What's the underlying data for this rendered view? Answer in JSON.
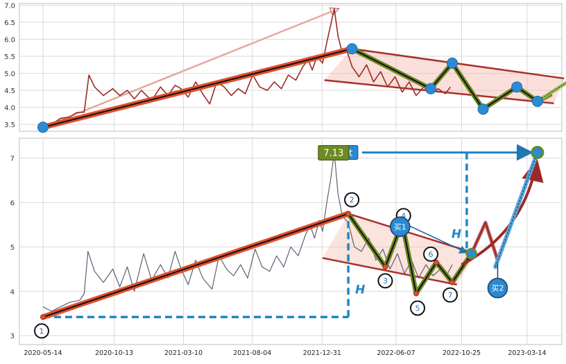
{
  "chart_data": [
    {
      "type": "line",
      "panel": "top",
      "ylim": [
        3.3,
        7.05
      ],
      "yticks": [
        "3.5",
        "4.0",
        "4.5",
        "5.0",
        "5.5",
        "6.0",
        "6.5",
        "7.0"
      ],
      "grid": true,
      "price_series": {
        "color": "#9b2a24",
        "points": [
          [
            "2020-05-14",
            3.42
          ],
          [
            "2020-06-01",
            3.5
          ],
          [
            "2020-06-20",
            3.68
          ],
          [
            "2020-07-10",
            3.72
          ],
          [
            "2020-07-25",
            3.85
          ],
          [
            "2020-08-10",
            3.86
          ],
          [
            "2020-08-20",
            4.95
          ],
          [
            "2020-09-01",
            4.6
          ],
          [
            "2020-09-20",
            4.35
          ],
          [
            "2020-10-10",
            4.55
          ],
          [
            "2020-10-25",
            4.35
          ],
          [
            "2020-11-10",
            4.5
          ],
          [
            "2020-11-25",
            4.25
          ],
          [
            "2020-12-10",
            4.5
          ],
          [
            "2021-01-01",
            4.2
          ],
          [
            "2021-01-20",
            4.6
          ],
          [
            "2021-02-05",
            4.35
          ],
          [
            "2021-02-20",
            4.65
          ],
          [
            "2021-03-05",
            4.55
          ],
          [
            "2021-03-20",
            4.3
          ],
          [
            "2021-04-05",
            4.75
          ],
          [
            "2021-04-20",
            4.4
          ],
          [
            "2021-05-05",
            4.1
          ],
          [
            "2021-05-20",
            4.75
          ],
          [
            "2021-06-05",
            4.6
          ],
          [
            "2021-06-20",
            4.35
          ],
          [
            "2021-07-05",
            4.55
          ],
          [
            "2021-07-20",
            4.4
          ],
          [
            "2021-08-05",
            4.95
          ],
          [
            "2021-08-20",
            4.6
          ],
          [
            "2021-09-05",
            4.5
          ],
          [
            "2021-09-20",
            4.75
          ],
          [
            "2021-10-05",
            4.55
          ],
          [
            "2021-10-20",
            4.95
          ],
          [
            "2021-11-05",
            4.8
          ],
          [
            "2021-11-20",
            5.2
          ],
          [
            "2021-12-01",
            5.4
          ],
          [
            "2021-12-10",
            5.1
          ],
          [
            "2021-12-20",
            5.5
          ],
          [
            "2022-01-01",
            5.3
          ],
          [
            "2022-01-10",
            5.9
          ],
          [
            "2022-01-18",
            6.4
          ],
          [
            "2022-01-26",
            6.9
          ],
          [
            "2022-02-03",
            6.1
          ],
          [
            "2022-02-12",
            5.6
          ],
          [
            "2022-02-20",
            5.75
          ],
          [
            "2022-03-05",
            5.2
          ],
          [
            "2022-03-20",
            4.9
          ],
          [
            "2022-04-05",
            5.25
          ],
          [
            "2022-04-20",
            4.75
          ],
          [
            "2022-05-05",
            5.05
          ],
          [
            "2022-05-20",
            4.6
          ],
          [
            "2022-06-05",
            4.9
          ],
          [
            "2022-06-20",
            4.45
          ],
          [
            "2022-07-05",
            4.75
          ],
          [
            "2022-07-20",
            4.35
          ],
          [
            "2022-08-05",
            4.6
          ],
          [
            "2022-08-20",
            4.4
          ],
          [
            "2022-09-05",
            4.55
          ],
          [
            "2022-09-20",
            4.4
          ],
          [
            "2022-10-01",
            4.6
          ]
        ]
      },
      "trend_up": {
        "start": [
          "2020-05-14",
          3.42
        ],
        "end": [
          "2022-03-05",
          5.72
        ]
      },
      "outline_arrow": {
        "start": [
          "2020-05-14",
          3.42
        ],
        "end": [
          "2022-02-05",
          6.9
        ]
      },
      "channel_upper": {
        "start": [
          "2022-03-05",
          5.72
        ],
        "end": [
          "2023-06-01",
          4.85
        ]
      },
      "channel_lower": {
        "start": [
          "2022-01-05",
          4.8
        ],
        "end": [
          "2023-05-10",
          4.12
        ]
      },
      "zigzag": [
        [
          "2022-03-05",
          5.72
        ],
        [
          "2022-08-20",
          4.55
        ],
        [
          "2022-10-05",
          5.3
        ],
        [
          "2022-12-10",
          3.95
        ],
        [
          "2023-02-20",
          4.6
        ],
        [
          "2023-04-05",
          4.18
        ],
        [
          "2023-05-05",
          4.4
        ]
      ],
      "projection_tail": [
        [
          "2023-04-05",
          4.18
        ],
        [
          "2023-06-20",
          4.85
        ]
      ],
      "pivots": [
        [
          "2020-05-14",
          3.42
        ],
        [
          "2022-03-05",
          5.72
        ],
        [
          "2022-08-20",
          4.55
        ],
        [
          "2022-10-05",
          5.3
        ],
        [
          "2022-12-10",
          3.95
        ],
        [
          "2023-02-20",
          4.6
        ],
        [
          "2023-04-05",
          4.18
        ]
      ]
    },
    {
      "type": "line",
      "panel": "bottom",
      "ylim": [
        2.8,
        7.45
      ],
      "yticks": [
        "3",
        "4",
        "5",
        "6",
        "7"
      ],
      "xticks": [
        "2020-05-14",
        "2020-10-13",
        "2021-03-10",
        "2021-08-04",
        "2021-12-31",
        "2022-06-07",
        "2022-10-25",
        "2023-03-14"
      ],
      "grid": true,
      "price_series": {
        "color": "#5a6170",
        "points": [
          [
            "2020-05-14",
            3.65
          ],
          [
            "2020-06-01",
            3.55
          ],
          [
            "2020-06-20",
            3.65
          ],
          [
            "2020-07-10",
            3.75
          ],
          [
            "2020-08-01",
            3.8
          ],
          [
            "2020-08-10",
            3.95
          ],
          [
            "2020-08-18",
            4.9
          ],
          [
            "2020-09-01",
            4.45
          ],
          [
            "2020-09-20",
            4.2
          ],
          [
            "2020-10-10",
            4.5
          ],
          [
            "2020-10-25",
            4.1
          ],
          [
            "2020-11-10",
            4.55
          ],
          [
            "2020-11-25",
            4.0
          ],
          [
            "2020-12-15",
            4.85
          ],
          [
            "2021-01-01",
            4.25
          ],
          [
            "2021-01-20",
            4.6
          ],
          [
            "2021-02-05",
            4.3
          ],
          [
            "2021-02-20",
            4.9
          ],
          [
            "2021-03-05",
            4.5
          ],
          [
            "2021-03-20",
            4.15
          ],
          [
            "2021-04-05",
            4.7
          ],
          [
            "2021-04-20",
            4.3
          ],
          [
            "2021-05-10",
            4.05
          ],
          [
            "2021-05-25",
            4.8
          ],
          [
            "2021-06-10",
            4.5
          ],
          [
            "2021-06-25",
            4.35
          ],
          [
            "2021-07-10",
            4.6
          ],
          [
            "2021-07-25",
            4.3
          ],
          [
            "2021-08-10",
            4.95
          ],
          [
            "2021-08-25",
            4.55
          ],
          [
            "2021-09-10",
            4.45
          ],
          [
            "2021-09-25",
            4.8
          ],
          [
            "2021-10-10",
            4.55
          ],
          [
            "2021-10-25",
            5.0
          ],
          [
            "2021-11-10",
            4.8
          ],
          [
            "2021-11-25",
            5.25
          ],
          [
            "2021-12-05",
            5.5
          ],
          [
            "2021-12-15",
            5.2
          ],
          [
            "2021-12-25",
            5.6
          ],
          [
            "2022-01-01",
            5.35
          ],
          [
            "2022-01-10",
            6.0
          ],
          [
            "2022-01-18",
            6.5
          ],
          [
            "2022-01-26",
            7.13
          ],
          [
            "2022-02-03",
            6.2
          ],
          [
            "2022-02-12",
            5.7
          ],
          [
            "2022-02-25",
            5.55
          ],
          [
            "2022-03-10",
            5.0
          ],
          [
            "2022-03-25",
            4.9
          ],
          [
            "2022-04-10",
            5.2
          ],
          [
            "2022-04-25",
            4.7
          ],
          [
            "2022-05-10",
            4.95
          ],
          [
            "2022-05-25",
            4.5
          ],
          [
            "2022-06-10",
            4.85
          ],
          [
            "2022-06-25",
            4.4
          ],
          [
            "2022-07-10",
            4.7
          ],
          [
            "2022-07-25",
            4.3
          ],
          [
            "2022-08-10",
            4.6
          ],
          [
            "2022-08-25",
            4.35
          ],
          [
            "2022-09-10",
            4.5
          ],
          [
            "2022-09-25",
            4.4
          ],
          [
            "2022-10-05",
            4.6
          ]
        ]
      },
      "trend_up": {
        "start": [
          "2020-05-14",
          3.42
        ],
        "end": [
          "2022-02-25",
          5.75
        ]
      },
      "channel_upper": {
        "start": [
          "2022-02-25",
          5.75
        ],
        "end": [
          "2022-11-25",
          4.85
        ]
      },
      "channel_lower": {
        "start": [
          "2022-01-01",
          4.75
        ],
        "end": [
          "2022-10-15",
          4.15
        ]
      },
      "zigzag": [
        [
          "2022-02-25",
          5.75
        ],
        [
          "2022-05-15",
          4.55
        ],
        [
          "2022-06-20",
          5.55
        ],
        [
          "2022-07-20",
          3.95
        ],
        [
          "2022-09-01",
          4.65
        ],
        [
          "2022-10-05",
          4.2
        ],
        [
          "2022-11-15",
          4.85
        ]
      ],
      "projection_zigzag": [
        [
          "2022-11-15",
          4.85
        ],
        [
          "2022-12-15",
          5.55
        ],
        [
          "2023-01-10",
          4.7
        ]
      ],
      "curve_arrow": [
        [
          "2022-10-25",
          4.6
        ],
        [
          "2023-03-01",
          5.3
        ],
        [
          "2023-04-01",
          6.8
        ]
      ],
      "blue_arrow": {
        "start": [
          "2023-01-05",
          4.55
        ],
        "end": [
          "2023-04-05",
          7.13
        ]
      },
      "dashed_levels": {
        "base_y": 3.42,
        "base_x_end": "2022-02-25",
        "target_x": "2022-11-05",
        "target_y": 7.13,
        "bottom_x": "2022-11-05",
        "bottom_y": 4.85
      },
      "labels": {
        "peak_value": "7.13",
        "target": "Target",
        "height_marker": "H",
        "buy1": "买1",
        "buy2": "买2",
        "pivot_numbers": [
          "1",
          "2",
          "3",
          "4",
          "5",
          "6",
          "7"
        ]
      },
      "pivot_points": [
        [
          "2020-05-14",
          3.42
        ],
        [
          "2022-02-25",
          5.75
        ],
        [
          "2022-05-15",
          4.55
        ],
        [
          "2022-06-20",
          5.55
        ],
        [
          "2022-07-20",
          3.95
        ],
        [
          "2022-09-01",
          4.65
        ],
        [
          "2022-10-05",
          4.2
        ]
      ],
      "entry_points": {
        "buy1": [
          "2022-06-20",
          5.55
        ],
        "buy1_target": [
          "2022-11-15",
          4.85
        ],
        "buy2": [
          "2023-01-10",
          4.7
        ],
        "target": [
          "2023-04-05",
          7.13
        ]
      }
    }
  ]
}
